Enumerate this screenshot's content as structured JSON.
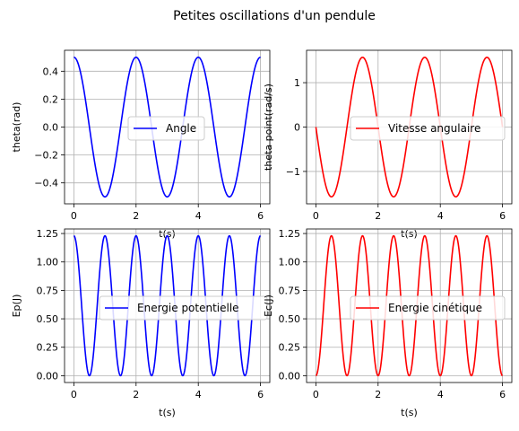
{
  "figure": {
    "suptitle": "Petites oscillations d'un pendule"
  },
  "chart_data": [
    {
      "type": "line",
      "xlabel": "t(s)",
      "ylabel": "theta(rad)",
      "xlim": [
        -0.3,
        6.3
      ],
      "ylim": [
        -0.55,
        0.55
      ],
      "xticks": [
        0,
        2,
        4,
        6
      ],
      "yticks": [
        -0.4,
        -0.2,
        0.0,
        0.2,
        0.4
      ],
      "ytick_labels": [
        "−0.4",
        "−0.2",
        "0.0",
        "0.2",
        "0.4"
      ],
      "grid": true,
      "legend_position": "center-right",
      "series": [
        {
          "name": "Angle",
          "color": "#0000ff",
          "function": "0.5*cos(pi*t)",
          "t_range": [
            0,
            6
          ]
        }
      ]
    },
    {
      "type": "line",
      "xlabel": "t(s)",
      "ylabel": "theta point(rad/s)",
      "xlim": [
        -0.3,
        6.3
      ],
      "ylim": [
        -1.73,
        1.73
      ],
      "xticks": [
        0,
        2,
        4,
        6
      ],
      "yticks": [
        -1,
        0,
        1
      ],
      "ytick_labels": [
        "−1",
        "0",
        "1"
      ],
      "grid": true,
      "legend_position": "center-right",
      "series": [
        {
          "name": "Vitesse angulaire",
          "color": "#ff0000",
          "function": "-0.5*pi*sin(pi*t)",
          "t_range": [
            0,
            6
          ]
        }
      ]
    },
    {
      "type": "line",
      "xlabel": "t(s)",
      "ylabel": "Ep(J)",
      "xlim": [
        -0.3,
        6.3
      ],
      "ylim": [
        -0.06,
        1.29
      ],
      "xticks": [
        0,
        2,
        4,
        6
      ],
      "yticks": [
        0.0,
        0.25,
        0.5,
        0.75,
        1.0,
        1.25
      ],
      "ytick_labels": [
        "0.00",
        "0.25",
        "0.50",
        "0.75",
        "1.00",
        "1.25"
      ],
      "grid": true,
      "legend_position": "center-right",
      "series": [
        {
          "name": "Energie potentielle",
          "color": "#0000ff",
          "function": "1.23*cos(pi*t)^2",
          "t_range": [
            0,
            6
          ]
        }
      ]
    },
    {
      "type": "line",
      "xlabel": "t(s)",
      "ylabel": "Ec(J)",
      "xlim": [
        -0.3,
        6.3
      ],
      "ylim": [
        -0.06,
        1.29
      ],
      "xticks": [
        0,
        2,
        4,
        6
      ],
      "yticks": [
        0.0,
        0.25,
        0.5,
        0.75,
        1.0,
        1.25
      ],
      "ytick_labels": [
        "0.00",
        "0.25",
        "0.50",
        "0.75",
        "1.00",
        "1.25"
      ],
      "grid": true,
      "legend_position": "center-right",
      "series": [
        {
          "name": "Energie cinétique",
          "color": "#ff0000",
          "function": "1.23*sin(pi*t)^2",
          "t_range": [
            0,
            6
          ]
        }
      ]
    }
  ]
}
